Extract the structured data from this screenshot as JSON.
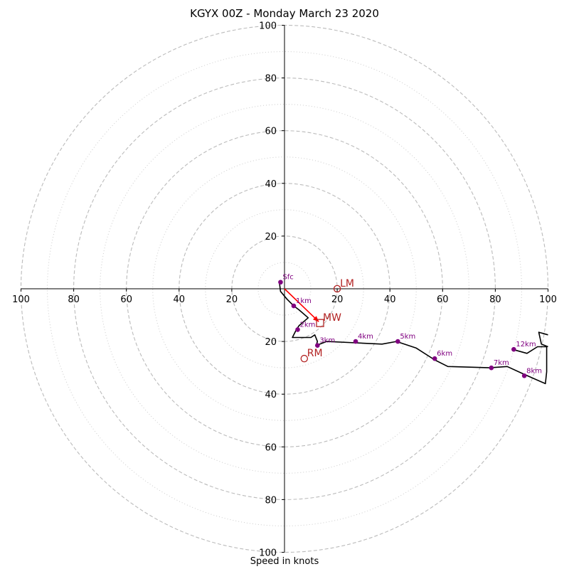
{
  "title": "KGYX 00Z - Monday March 23 2020",
  "footer_label": "Speed in knots",
  "colors": {
    "hodograph": "#000000",
    "level_point": "#800080",
    "storm_motion": "#b22222",
    "mean_wind_vector": "#ff0000",
    "ring_major": "#bbbbbb",
    "ring_minor": "#cccccc"
  },
  "chart_data": {
    "type": "scatter",
    "subtype": "hodograph",
    "units": "knots",
    "xlim": [
      -100,
      100
    ],
    "ylim": [
      -100,
      100
    ],
    "major_rings": [
      20,
      40,
      60,
      80,
      100
    ],
    "minor_rings": [
      10,
      30,
      50,
      70,
      90
    ],
    "grid": true,
    "tick_labels": {
      "x_left": [
        "100",
        "80",
        "60",
        "40",
        "20"
      ],
      "x_right": [
        "20",
        "40",
        "60",
        "80",
        "100"
      ],
      "y_up": [
        "20",
        "40",
        "60",
        "80",
        "100"
      ],
      "y_down": [
        "20",
        "40",
        "60",
        "80",
        "100"
      ]
    },
    "hodograph_trace": [
      [
        -2,
        3
      ],
      [
        -1.5,
        -1
      ],
      [
        1,
        -4
      ],
      [
        3.5,
        -6.5
      ],
      [
        5.5,
        -8
      ],
      [
        9,
        -11
      ],
      [
        5.5,
        -14
      ],
      [
        4.5,
        -15.5
      ],
      [
        3,
        -18.5
      ],
      [
        10,
        -18.5
      ],
      [
        11.5,
        -17.5
      ],
      [
        12.5,
        -20
      ],
      [
        12,
        -21.5
      ],
      [
        16,
        -20
      ],
      [
        27,
        -20.5
      ],
      [
        37,
        -21
      ],
      [
        42.5,
        -20
      ],
      [
        50,
        -22.5
      ],
      [
        57,
        -27
      ],
      [
        62,
        -29.5
      ],
      [
        78,
        -30
      ],
      [
        84.5,
        -29.5
      ],
      [
        91,
        -32.5
      ],
      [
        99,
        -36
      ],
      [
        99.5,
        -31.5
      ],
      [
        99.5,
        -22
      ],
      [
        96,
        -22
      ],
      [
        92,
        -24.5
      ],
      [
        86.5,
        -23
      ]
    ],
    "trace_tail": [
      [
        100,
        -17.5
      ],
      [
        96.5,
        -16.5
      ],
      [
        97.5,
        -21
      ],
      [
        100,
        -22
      ]
    ],
    "levels": [
      {
        "label": "Sfc",
        "u": -1.5,
        "v": 2.5
      },
      {
        "label": "1km",
        "u": 3.5,
        "v": -6.5
      },
      {
        "label": "2km",
        "u": 5,
        "v": -15.5
      },
      {
        "label": "3km",
        "u": 12.5,
        "v": -21.5
      },
      {
        "label": "4km",
        "u": 27,
        "v": -20
      },
      {
        "label": "5km",
        "u": 43,
        "v": -20
      },
      {
        "label": "6km",
        "u": 57,
        "v": -26.5
      },
      {
        "label": "7km",
        "u": 78.5,
        "v": -30
      },
      {
        "label": "8km",
        "u": 91,
        "v": -33
      },
      {
        "label": "12km",
        "u": 87,
        "v": -23
      }
    ],
    "storm_motion": [
      {
        "label": "LM",
        "u": 20,
        "v": 0,
        "marker": "circle"
      },
      {
        "label": "RM",
        "u": 7.5,
        "v": -26.5,
        "marker": "circle"
      },
      {
        "label": "MW",
        "u": 13.5,
        "v": -13,
        "marker": "square"
      }
    ],
    "mean_wind_vector": {
      "from": [
        0,
        0
      ],
      "to": [
        13,
        -12.5
      ]
    }
  }
}
